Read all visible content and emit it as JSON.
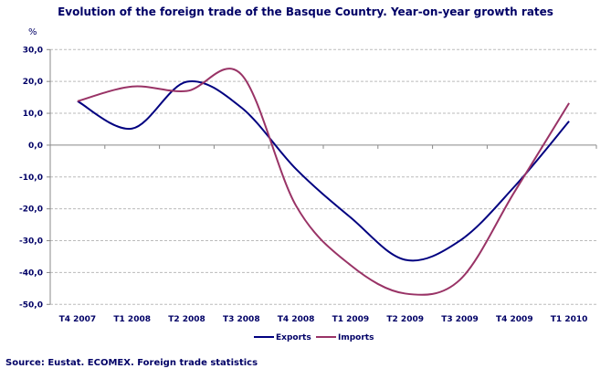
{
  "chart_data": {
    "type": "line",
    "title": "Evolution of the foreign trade of the Basque Country. Year-on-year growth rates",
    "ylabel": "%",
    "xlabel": "",
    "categories": [
      "T4 2007",
      "T1 2008",
      "T2 2008",
      "T3 2008",
      "T4 2008",
      "T1 2009",
      "T2 2009",
      "T3 2009",
      "T4 2009",
      "T1 2010"
    ],
    "ylim": [
      -50,
      30
    ],
    "yticks": [
      "30,0",
      "20,0",
      "10,0",
      "0,0",
      "-10,0",
      "-20,0",
      "-30,0",
      "-40,0",
      "-50,0"
    ],
    "grid": true,
    "legend": "bottom",
    "series": [
      {
        "name": "Exports",
        "color": "#000080",
        "values": [
          13.8,
          5.2,
          19.9,
          11.8,
          -7.5,
          -22.7,
          -36.0,
          -30.0,
          -13.0,
          7.5
        ]
      },
      {
        "name": "Imports",
        "color": "#993366",
        "values": [
          13.8,
          18.4,
          17.0,
          22.2,
          -19.0,
          -37.7,
          -46.6,
          -42.3,
          -14.7,
          13.2
        ]
      }
    ],
    "source": "Source: Eustat. ECOMEX. Foreign trade statistics"
  }
}
